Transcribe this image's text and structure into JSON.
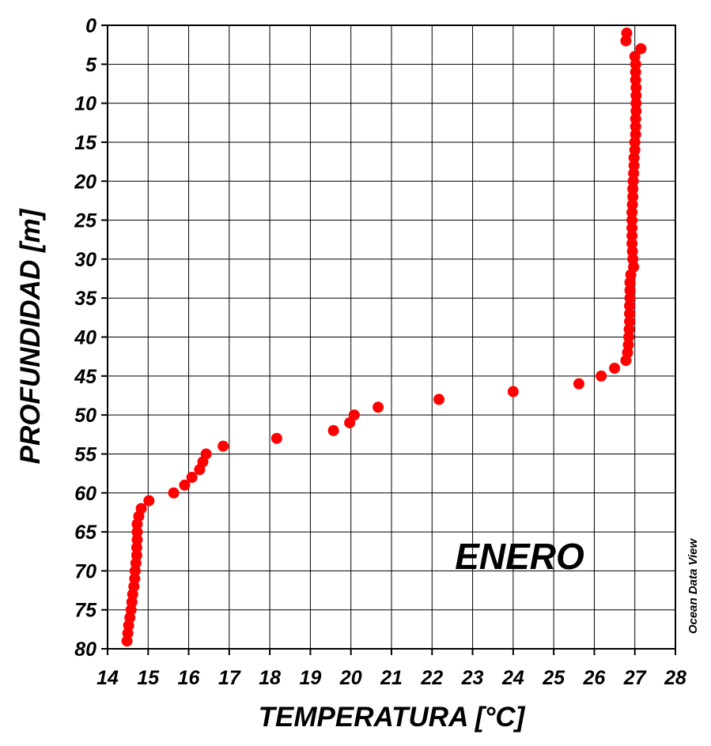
{
  "chart_data": {
    "type": "scatter",
    "xlabel": "TEMPERATURA [°C]",
    "ylabel": "PROFUNDIDAD [m]",
    "annotation": "ENERO",
    "credit": "Ocean Data View",
    "xlim": [
      14,
      28
    ],
    "ylim": [
      0,
      80
    ],
    "y_inverted": true,
    "x_ticks": [
      14,
      15,
      16,
      17,
      18,
      19,
      20,
      21,
      22,
      23,
      24,
      25,
      26,
      27,
      28
    ],
    "y_ticks": [
      0,
      5,
      10,
      15,
      20,
      25,
      30,
      35,
      40,
      45,
      50,
      55,
      60,
      65,
      70,
      75,
      80
    ],
    "grid": true,
    "marker_color": "#ff0000",
    "series": [
      {
        "points": [
          [
            26.8,
            1
          ],
          [
            26.78,
            2
          ],
          [
            27.15,
            3
          ],
          [
            27.0,
            4
          ],
          [
            27.02,
            5
          ],
          [
            27.02,
            6
          ],
          [
            27.02,
            7
          ],
          [
            27.03,
            8
          ],
          [
            27.03,
            9
          ],
          [
            27.03,
            10
          ],
          [
            27.03,
            11
          ],
          [
            27.02,
            12
          ],
          [
            27.02,
            13
          ],
          [
            27.02,
            14
          ],
          [
            27.0,
            15
          ],
          [
            27.0,
            16
          ],
          [
            26.98,
            17
          ],
          [
            26.98,
            18
          ],
          [
            26.97,
            19
          ],
          [
            26.96,
            20
          ],
          [
            26.95,
            21
          ],
          [
            26.95,
            22
          ],
          [
            26.94,
            23
          ],
          [
            26.93,
            24
          ],
          [
            26.93,
            25
          ],
          [
            26.93,
            26
          ],
          [
            26.93,
            27
          ],
          [
            26.93,
            28
          ],
          [
            26.94,
            29
          ],
          [
            26.95,
            30
          ],
          [
            26.97,
            31
          ],
          [
            26.9,
            32
          ],
          [
            26.88,
            33
          ],
          [
            26.88,
            34
          ],
          [
            26.88,
            35
          ],
          [
            26.87,
            36
          ],
          [
            26.87,
            37
          ],
          [
            26.87,
            38
          ],
          [
            26.86,
            39
          ],
          [
            26.85,
            40
          ],
          [
            26.84,
            41
          ],
          [
            26.82,
            42
          ],
          [
            26.78,
            43
          ],
          [
            26.5,
            44
          ],
          [
            26.17,
            45
          ],
          [
            25.62,
            46
          ],
          [
            24.0,
            47
          ],
          [
            22.17,
            48
          ],
          [
            20.67,
            49
          ],
          [
            20.08,
            50
          ],
          [
            19.97,
            51
          ],
          [
            19.57,
            52
          ],
          [
            18.17,
            53
          ],
          [
            16.85,
            54
          ],
          [
            16.43,
            55
          ],
          [
            16.35,
            56
          ],
          [
            16.27,
            57
          ],
          [
            16.08,
            58
          ],
          [
            15.9,
            59
          ],
          [
            15.63,
            60
          ],
          [
            15.02,
            61
          ],
          [
            14.83,
            62
          ],
          [
            14.77,
            63
          ],
          [
            14.73,
            64
          ],
          [
            14.73,
            65
          ],
          [
            14.73,
            66
          ],
          [
            14.72,
            67
          ],
          [
            14.72,
            68
          ],
          [
            14.7,
            69
          ],
          [
            14.68,
            70
          ],
          [
            14.67,
            71
          ],
          [
            14.65,
            72
          ],
          [
            14.62,
            73
          ],
          [
            14.6,
            74
          ],
          [
            14.58,
            75
          ],
          [
            14.55,
            76
          ],
          [
            14.52,
            77
          ],
          [
            14.5,
            78
          ],
          [
            14.48,
            79
          ]
        ]
      }
    ]
  }
}
